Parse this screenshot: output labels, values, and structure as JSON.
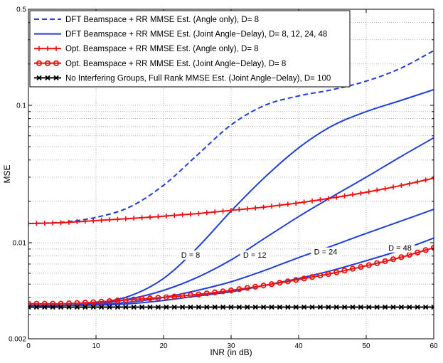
{
  "chart_data": {
    "type": "line",
    "title": "",
    "xlabel": "INR (in dB)",
    "ylabel": "MSE",
    "xlim": [
      0,
      60
    ],
    "ylim": [
      0.002,
      0.5
    ],
    "yscale": "log",
    "grid": true,
    "legend_position": "top-left",
    "x_ticks": [
      0,
      10,
      20,
      30,
      40,
      50,
      60
    ],
    "x_tick_labels": [
      "0",
      "10",
      "20",
      "30",
      "40",
      "50",
      "60"
    ],
    "y_ticks": [
      0.002,
      0.01,
      0.1,
      0.5
    ],
    "y_tick_labels": [
      "0.002",
      "0.01",
      "0.1",
      "0.5"
    ],
    "annotations": [
      {
        "text": "D = 8",
        "x": 24,
        "y": 0.0078
      },
      {
        "text": "D = 12",
        "x": 33.5,
        "y": 0.0078
      },
      {
        "text": "D = 24",
        "x": 44,
        "y": 0.0082
      },
      {
        "text": "D = 48",
        "x": 55,
        "y": 0.0088
      }
    ],
    "series": [
      {
        "name": "DFT Beamspace + RR MMSE Est. (Angle only), D= 8",
        "color": "#1f3fdc",
        "dash": "dashed",
        "marker": "none",
        "x": [
          0,
          5,
          10,
          15,
          20,
          25,
          30,
          35,
          40,
          45,
          50,
          55,
          60
        ],
        "y": [
          0.0138,
          0.0141,
          0.0153,
          0.0182,
          0.0262,
          0.0435,
          0.072,
          0.1,
          0.117,
          0.13,
          0.15,
          0.185,
          0.25
        ]
      },
      {
        "name": "DFT Beamspace + RR MMSE Est. (Joint Angle−Delay), D= 8, 12, 24, 48",
        "color": "#1f3fdc",
        "dash": "solid",
        "marker": "none",
        "x": [
          0,
          5,
          10,
          15,
          20,
          25,
          30,
          35,
          40,
          45,
          50,
          55,
          60
        ],
        "y": [
          0.0035,
          0.0035,
          0.00365,
          0.0041,
          0.0055,
          0.0092,
          0.017,
          0.03,
          0.049,
          0.071,
          0.09,
          0.108,
          0.13
        ]
      },
      {
        "name": "D = 12",
        "color": "#1f3fdc",
        "dash": "solid",
        "marker": "none",
        "in_legend": false,
        "x": [
          0,
          5,
          10,
          15,
          20,
          25,
          30,
          35,
          40,
          45,
          50,
          55,
          60
        ],
        "y": [
          0.0035,
          0.0035,
          0.0036,
          0.0039,
          0.0045,
          0.0056,
          0.0075,
          0.0108,
          0.0155,
          0.0217,
          0.03,
          0.042,
          0.058
        ]
      },
      {
        "name": "D = 24",
        "color": "#1f3fdc",
        "dash": "solid",
        "marker": "none",
        "in_legend": false,
        "x": [
          0,
          5,
          10,
          15,
          20,
          25,
          30,
          35,
          40,
          45,
          50,
          55,
          60
        ],
        "y": [
          0.0035,
          0.0035,
          0.00355,
          0.0037,
          0.004,
          0.0045,
          0.0052,
          0.0063,
          0.0078,
          0.0095,
          0.0117,
          0.0143,
          0.0175
        ]
      },
      {
        "name": "D = 48",
        "color": "#1f3fdc",
        "dash": "solid",
        "marker": "none",
        "in_legend": false,
        "x": [
          0,
          5,
          10,
          15,
          20,
          25,
          30,
          35,
          40,
          45,
          50,
          55,
          60
        ],
        "y": [
          0.0035,
          0.0035,
          0.00352,
          0.0036,
          0.0038,
          0.0041,
          0.0044,
          0.0049,
          0.0055,
          0.0063,
          0.0074,
          0.0088,
          0.0108
        ]
      },
      {
        "name": "Opt. Beamspace + RR MMSE Est. (Angle only), D= 8",
        "color": "#ee1111",
        "dash": "solid",
        "marker": "plus",
        "x": [
          0,
          5,
          10,
          15,
          20,
          25,
          30,
          35,
          40,
          45,
          50,
          55,
          60
        ],
        "y": [
          0.0138,
          0.014,
          0.0145,
          0.015,
          0.0156,
          0.0163,
          0.0172,
          0.0182,
          0.0195,
          0.0212,
          0.0233,
          0.026,
          0.0295
        ]
      },
      {
        "name": "Opt. Beamspace + RR MMSE Est. (Joint Angle−Delay), D= 8",
        "color": "#ee1111",
        "dash": "solid",
        "marker": "circle",
        "x": [
          0,
          5,
          10,
          15,
          20,
          25,
          30,
          35,
          40,
          45,
          50,
          55,
          60
        ],
        "y": [
          0.0036,
          0.0036,
          0.0037,
          0.00385,
          0.004,
          0.0042,
          0.0045,
          0.0049,
          0.0054,
          0.006,
          0.0068,
          0.0078,
          0.0092
        ]
      },
      {
        "name": "No Interfering Groups, Full Rank MMSE Est. (Joint Angle−Delay), D= 100",
        "color": "#000000",
        "dash": "solid",
        "marker": "x",
        "x": [
          0,
          10,
          20,
          30,
          40,
          50,
          60
        ],
        "y": [
          0.0034,
          0.0034,
          0.0034,
          0.0034,
          0.0034,
          0.0034,
          0.0034
        ]
      }
    ]
  }
}
